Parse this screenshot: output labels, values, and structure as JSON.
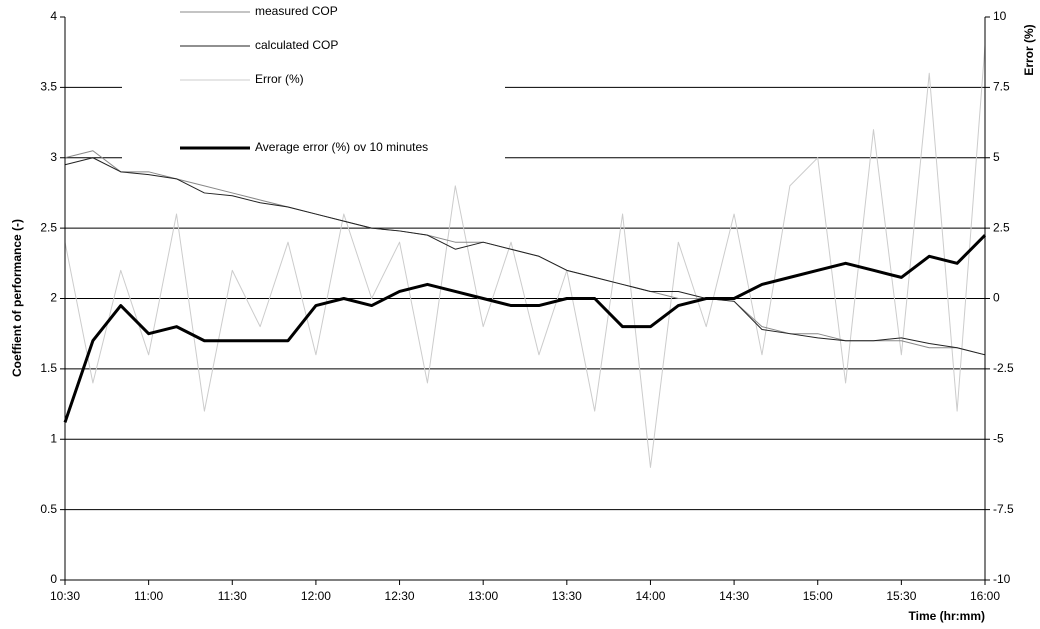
{
  "chart_data": {
    "type": "line",
    "ylabel": "Coeffient of performance (-)",
    "y2label": "Error (%)",
    "xlabel": "Time (hr:mm)",
    "x": [
      "10:30",
      "10:40",
      "10:50",
      "11:00",
      "11:10",
      "11:20",
      "11:30",
      "11:40",
      "11:50",
      "12:00",
      "12:10",
      "12:20",
      "12:30",
      "12:40",
      "12:50",
      "13:00",
      "13:10",
      "13:20",
      "13:30",
      "13:40",
      "13:50",
      "14:00",
      "14:10",
      "14:20",
      "14:30",
      "14:40",
      "14:50",
      "15:00",
      "15:10",
      "15:20",
      "15:30",
      "15:40",
      "15:50",
      "16:00"
    ],
    "series": [
      {
        "name": "measured COP",
        "color": "#888888",
        "width": 1,
        "values": [
          3.0,
          3.05,
          2.9,
          2.9,
          2.85,
          2.8,
          2.75,
          2.7,
          2.65,
          2.6,
          2.55,
          2.5,
          2.48,
          2.45,
          2.4,
          2.4,
          2.35,
          2.3,
          2.2,
          2.15,
          2.1,
          2.05,
          2.0,
          2.0,
          1.98,
          1.8,
          1.75,
          1.75,
          1.7,
          1.7,
          1.7,
          1.65,
          1.65,
          1.6
        ]
      },
      {
        "name": "calculated COP",
        "color": "#222222",
        "width": 1,
        "values": [
          2.95,
          3.0,
          2.9,
          2.88,
          2.85,
          2.75,
          2.73,
          2.68,
          2.65,
          2.6,
          2.55,
          2.5,
          2.48,
          2.45,
          2.35,
          2.4,
          2.35,
          2.3,
          2.2,
          2.15,
          2.1,
          2.05,
          2.05,
          2.0,
          1.98,
          1.78,
          1.75,
          1.72,
          1.7,
          1.7,
          1.72,
          1.68,
          1.65,
          1.6
        ]
      },
      {
        "name": "Error (%)",
        "color": "#cccccc",
        "width": 1,
        "axis": "y2",
        "values": [
          2,
          -3,
          1,
          -2,
          3,
          -4,
          1,
          -1,
          2,
          -2,
          3,
          0,
          2,
          -3,
          4,
          -1,
          2,
          -2,
          1,
          -4,
          3,
          -6,
          2,
          -1,
          3,
          -2,
          4,
          5,
          -3,
          6,
          -2,
          8,
          -4,
          9
        ]
      },
      {
        "name": "Average error (%) ov 10 minutes",
        "color": "#000000",
        "width": 3,
        "axis": "y2",
        "values": [
          -4.4,
          -1.5,
          -0.25,
          -1.25,
          -1,
          -1.5,
          -1.5,
          -1.5,
          -1.5,
          -0.25,
          0,
          -0.25,
          0.25,
          0.5,
          0.25,
          0,
          -0.25,
          -0.25,
          0,
          0,
          -1,
          -1,
          -0.25,
          0,
          0,
          0.5,
          0.75,
          1,
          1.25,
          1,
          0.75,
          1.5,
          1.25,
          2.25
        ]
      }
    ],
    "xticks": [
      "10:30",
      "11:00",
      "11:30",
      "12:00",
      "12:30",
      "13:00",
      "13:30",
      "14:00",
      "14:30",
      "15:00",
      "15:30",
      "16:00"
    ],
    "ylim": [
      0,
      4
    ],
    "yticks": [
      0,
      0.5,
      1,
      1.5,
      2,
      2.5,
      3,
      3.5,
      4
    ],
    "y2lim": [
      -10,
      10
    ],
    "y2ticks": [
      -10,
      -7.5,
      -5,
      -2.5,
      0,
      2.5,
      5,
      7.5,
      10
    ],
    "grid": true
  }
}
